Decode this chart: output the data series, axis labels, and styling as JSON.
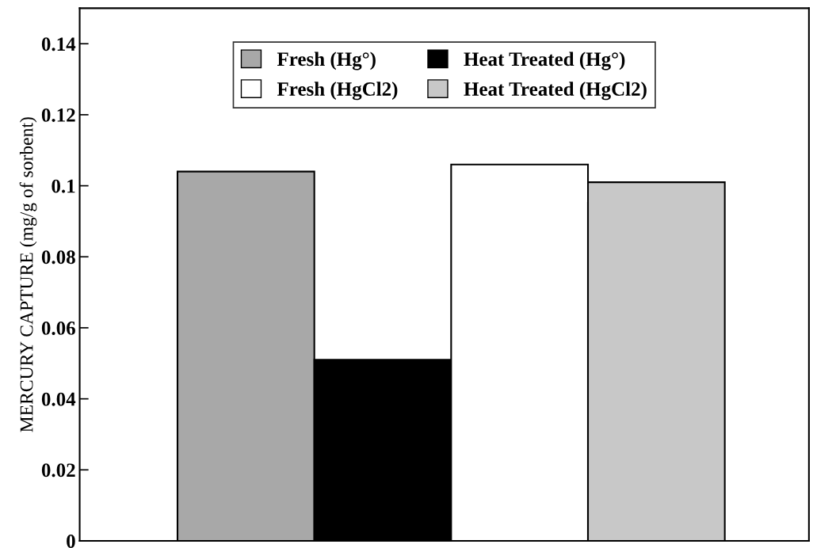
{
  "chart_data": {
    "type": "bar",
    "ylabel": "MERCURY CAPTURE (mg/g of sorbent)",
    "categories": [
      null
    ],
    "series": [
      {
        "name": "Fresh (Hg°)",
        "color": "#a8a8a8",
        "values": [
          0.104
        ]
      },
      {
        "name": "Heat Treated (Hg°)",
        "color": "#000000",
        "values": [
          0.051
        ]
      },
      {
        "name": "Fresh (HgCl2)",
        "color": "#ffffff",
        "values": [
          0.106
        ]
      },
      {
        "name": "Heat Treated (HgCl2)",
        "color": "#c8c8c8",
        "values": [
          0.101
        ]
      }
    ],
    "ylim": [
      0,
      0.15
    ],
    "yticks": [
      0,
      0.02,
      0.04,
      0.06,
      0.08,
      0.1,
      0.12,
      0.14
    ],
    "grid": false,
    "legend": "top"
  }
}
